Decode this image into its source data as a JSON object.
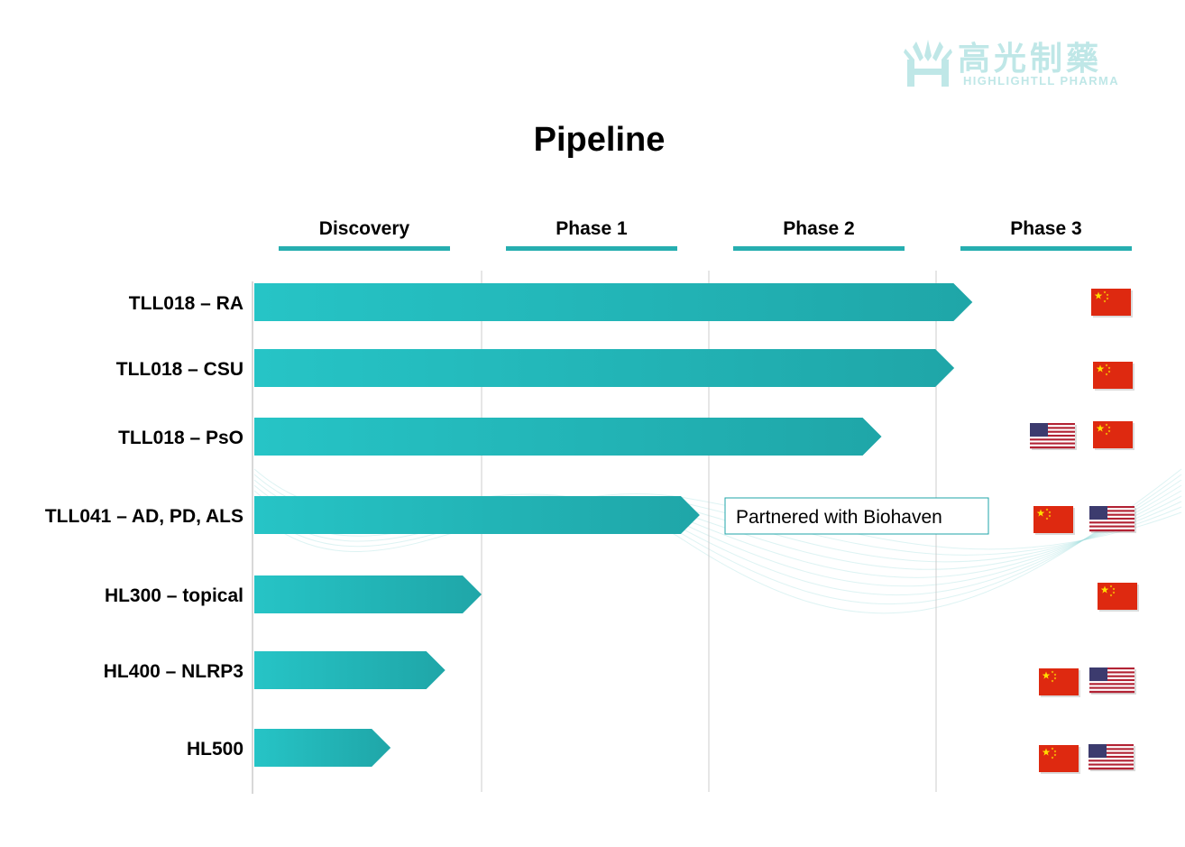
{
  "logo": {
    "name_cn": "高光制藥",
    "name_en": "HIGHLIGHTLL PHARMA"
  },
  "title": "Pipeline",
  "colors": {
    "bar_start": "#26c4c6",
    "bar_end": "#1fa6a8",
    "phase_underline": "#26aeb0",
    "divider": "#cccccc",
    "flag_cn_red": "#de2910",
    "flag_cn_star": "#ffde00",
    "flag_us_red": "#b22234",
    "flag_us_blue": "#3c3b6e",
    "wave": "#9fdcdc",
    "partner_border": "#1fa6a8"
  },
  "partner_note": "Partnered with Biohaven",
  "chart_data": {
    "type": "bar",
    "orientation": "horizontal",
    "x_stages": [
      "Discovery",
      "Phase 1",
      "Phase 2",
      "Phase 3"
    ],
    "categories": [
      "TLL018 – RA",
      "TLL018 – CSU",
      "TLL018 – PsO",
      "TLL041 – AD, PD, ALS",
      "HL300 – topical",
      "HL400 – NLRP3",
      "HL500"
    ],
    "values": [
      0.79,
      0.77,
      0.69,
      0.49,
      0.25,
      0.21,
      0.15
    ],
    "value_unit": "fraction of span from Discovery to end of Phase 3",
    "regions": [
      [
        "CN"
      ],
      [
        "CN"
      ],
      [
        "US",
        "CN"
      ],
      [
        "CN",
        "US"
      ],
      [
        "CN"
      ],
      [
        "CN",
        "US"
      ],
      [
        "CN",
        "US"
      ]
    ],
    "annotations": [
      {
        "row": 3,
        "text": "Partnered with Biohaven"
      }
    ],
    "grid": true,
    "legend": "none"
  }
}
